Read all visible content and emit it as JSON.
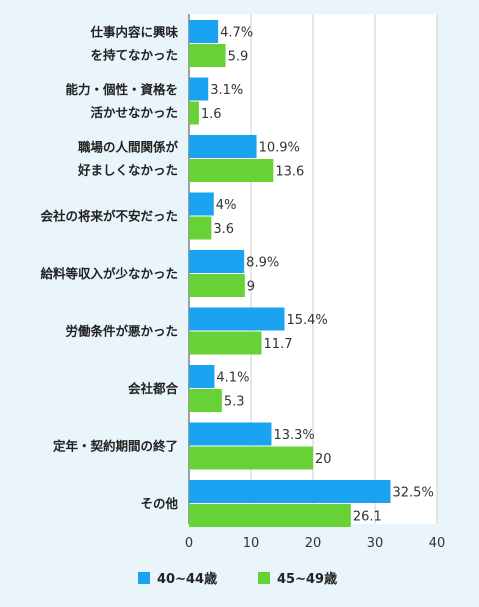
{
  "chart_data": {
    "type": "bar",
    "orientation": "horizontal",
    "categories": [
      [
        "仕事内容に興味",
        "を持てなかった"
      ],
      [
        "能力・個性・資格を",
        "活かせなかった"
      ],
      [
        "職場の人間関係が",
        "好ましくなかった"
      ],
      [
        "会社の将来が不安だった"
      ],
      [
        "給料等収入が少なかった"
      ],
      [
        "労働条件が悪かった"
      ],
      [
        "会社都合"
      ],
      [
        "定年・契約期間の終了"
      ],
      [
        "その他"
      ]
    ],
    "series": [
      {
        "name": "40~44歳",
        "color": "#1aa3f0",
        "values": [
          4.7,
          3.1,
          10.9,
          4,
          8.9,
          15.4,
          4.1,
          13.3,
          32.5
        ],
        "labels": [
          "4.7%",
          "3.1%",
          "10.9%",
          "4%",
          "8.9%",
          "15.4%",
          "4.1%",
          "13.3%",
          "32.5%"
        ]
      },
      {
        "name": "45~49歳",
        "color": "#66d236",
        "values": [
          5.9,
          1.6,
          13.6,
          3.6,
          9,
          11.7,
          5.3,
          20,
          26.1
        ],
        "labels": [
          "5.9",
          "1.6",
          "13.6",
          "3.6",
          "9",
          "11.7",
          "5.3",
          "20",
          "26.1"
        ]
      }
    ],
    "xlim": [
      0,
      40
    ],
    "xticks": [
      0,
      10,
      20,
      30,
      40
    ],
    "grid": true,
    "legend_position": "bottom-center"
  }
}
